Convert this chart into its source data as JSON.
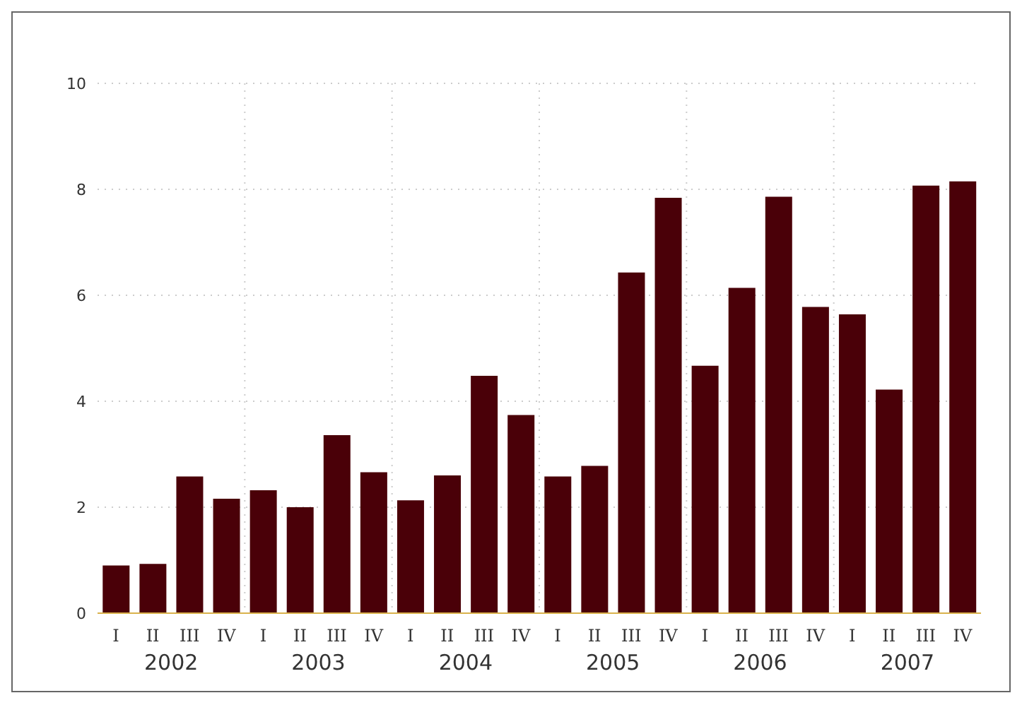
{
  "chart_data": {
    "type": "bar",
    "categories": [
      "I",
      "II",
      "III",
      "IV",
      "I",
      "II",
      "III",
      "IV",
      "I",
      "II",
      "III",
      "IV",
      "I",
      "II",
      "III",
      "IV",
      "I",
      "II",
      "III",
      "IV",
      "I",
      "II",
      "III",
      "IV"
    ],
    "values": [
      0.9,
      0.93,
      2.58,
      2.16,
      2.32,
      2.0,
      3.36,
      2.66,
      2.13,
      2.6,
      4.48,
      3.74,
      2.58,
      2.78,
      6.43,
      7.84,
      4.67,
      6.14,
      7.86,
      5.78,
      5.64,
      4.22,
      8.07,
      8.15
    ],
    "color": "#4a0008",
    "ylim": [
      0,
      10
    ],
    "yticks": [
      0,
      2,
      4,
      6,
      8,
      10
    ],
    "grid": true,
    "annotations": [
      "2002",
      "2003",
      "2004",
      "2005",
      "2006",
      "2007"
    ]
  }
}
